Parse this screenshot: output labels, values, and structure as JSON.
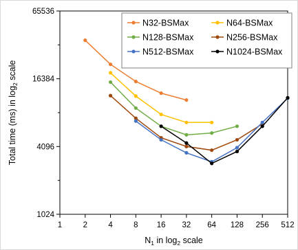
{
  "chart_data": {
    "type": "line",
    "title": "",
    "xlabel": "N1 in log2 scale",
    "xlabel_parts": {
      "base": "N",
      "sub": "1",
      "rest": " in log",
      "sub2": "2",
      "tail": " scale"
    },
    "ylabel": "Total time (ms) in log2 scale",
    "ylabel_parts": {
      "base": "Total time (ms) in log",
      "sub": "2",
      "tail": " scale"
    },
    "x_scale": "log2",
    "y_scale": "log2",
    "xlim": [
      1,
      512
    ],
    "ylim": [
      1024,
      65536
    ],
    "x_ticks": [
      1,
      2,
      4,
      8,
      16,
      32,
      64,
      128,
      256,
      512
    ],
    "x_tick_labels": [
      "1",
      "2",
      "4",
      "8",
      "16",
      "32",
      "64",
      "128",
      "256",
      "512"
    ],
    "y_ticks": [
      1024,
      4096,
      16384,
      65536
    ],
    "y_tick_labels": [
      "1024",
      "4096",
      "16384",
      "65536"
    ],
    "grid": false,
    "legend_position": "top-right",
    "series": [
      {
        "name": "N32-BSMax",
        "color": "#ED7D31",
        "x": [
          2,
          4,
          8,
          16,
          32
        ],
        "y": [
          36000,
          22000,
          15500,
          12200,
          10600
        ]
      },
      {
        "name": "N64-BSMax",
        "color": "#FFC000",
        "x": [
          4,
          8,
          16,
          32,
          64
        ],
        "y": [
          18500,
          11500,
          7900,
          6700,
          6700
        ]
      },
      {
        "name": "N128-BSMax",
        "color": "#70AD47",
        "x": [
          4,
          8,
          16,
          32,
          64,
          128
        ],
        "y": [
          15300,
          9000,
          6200,
          5200,
          5400,
          6200
        ]
      },
      {
        "name": "N256-BSMax",
        "color": "#9E480E",
        "x": [
          4,
          8,
          16,
          32,
          64,
          128,
          256
        ],
        "y": [
          11600,
          7300,
          4900,
          4100,
          3800,
          4700,
          6500
        ]
      },
      {
        "name": "N512-BSMax",
        "color": "#4472C4",
        "x": [
          8,
          16,
          32,
          64,
          128,
          256,
          512
        ],
        "y": [
          6900,
          4700,
          3600,
          3000,
          4000,
          6700,
          11000
        ]
      },
      {
        "name": "N1024-BSMax",
        "color": "#000000",
        "x": [
          16,
          32,
          64,
          128,
          256,
          512
        ],
        "y": [
          6200,
          4400,
          2900,
          3700,
          6200,
          11100
        ]
      }
    ]
  }
}
